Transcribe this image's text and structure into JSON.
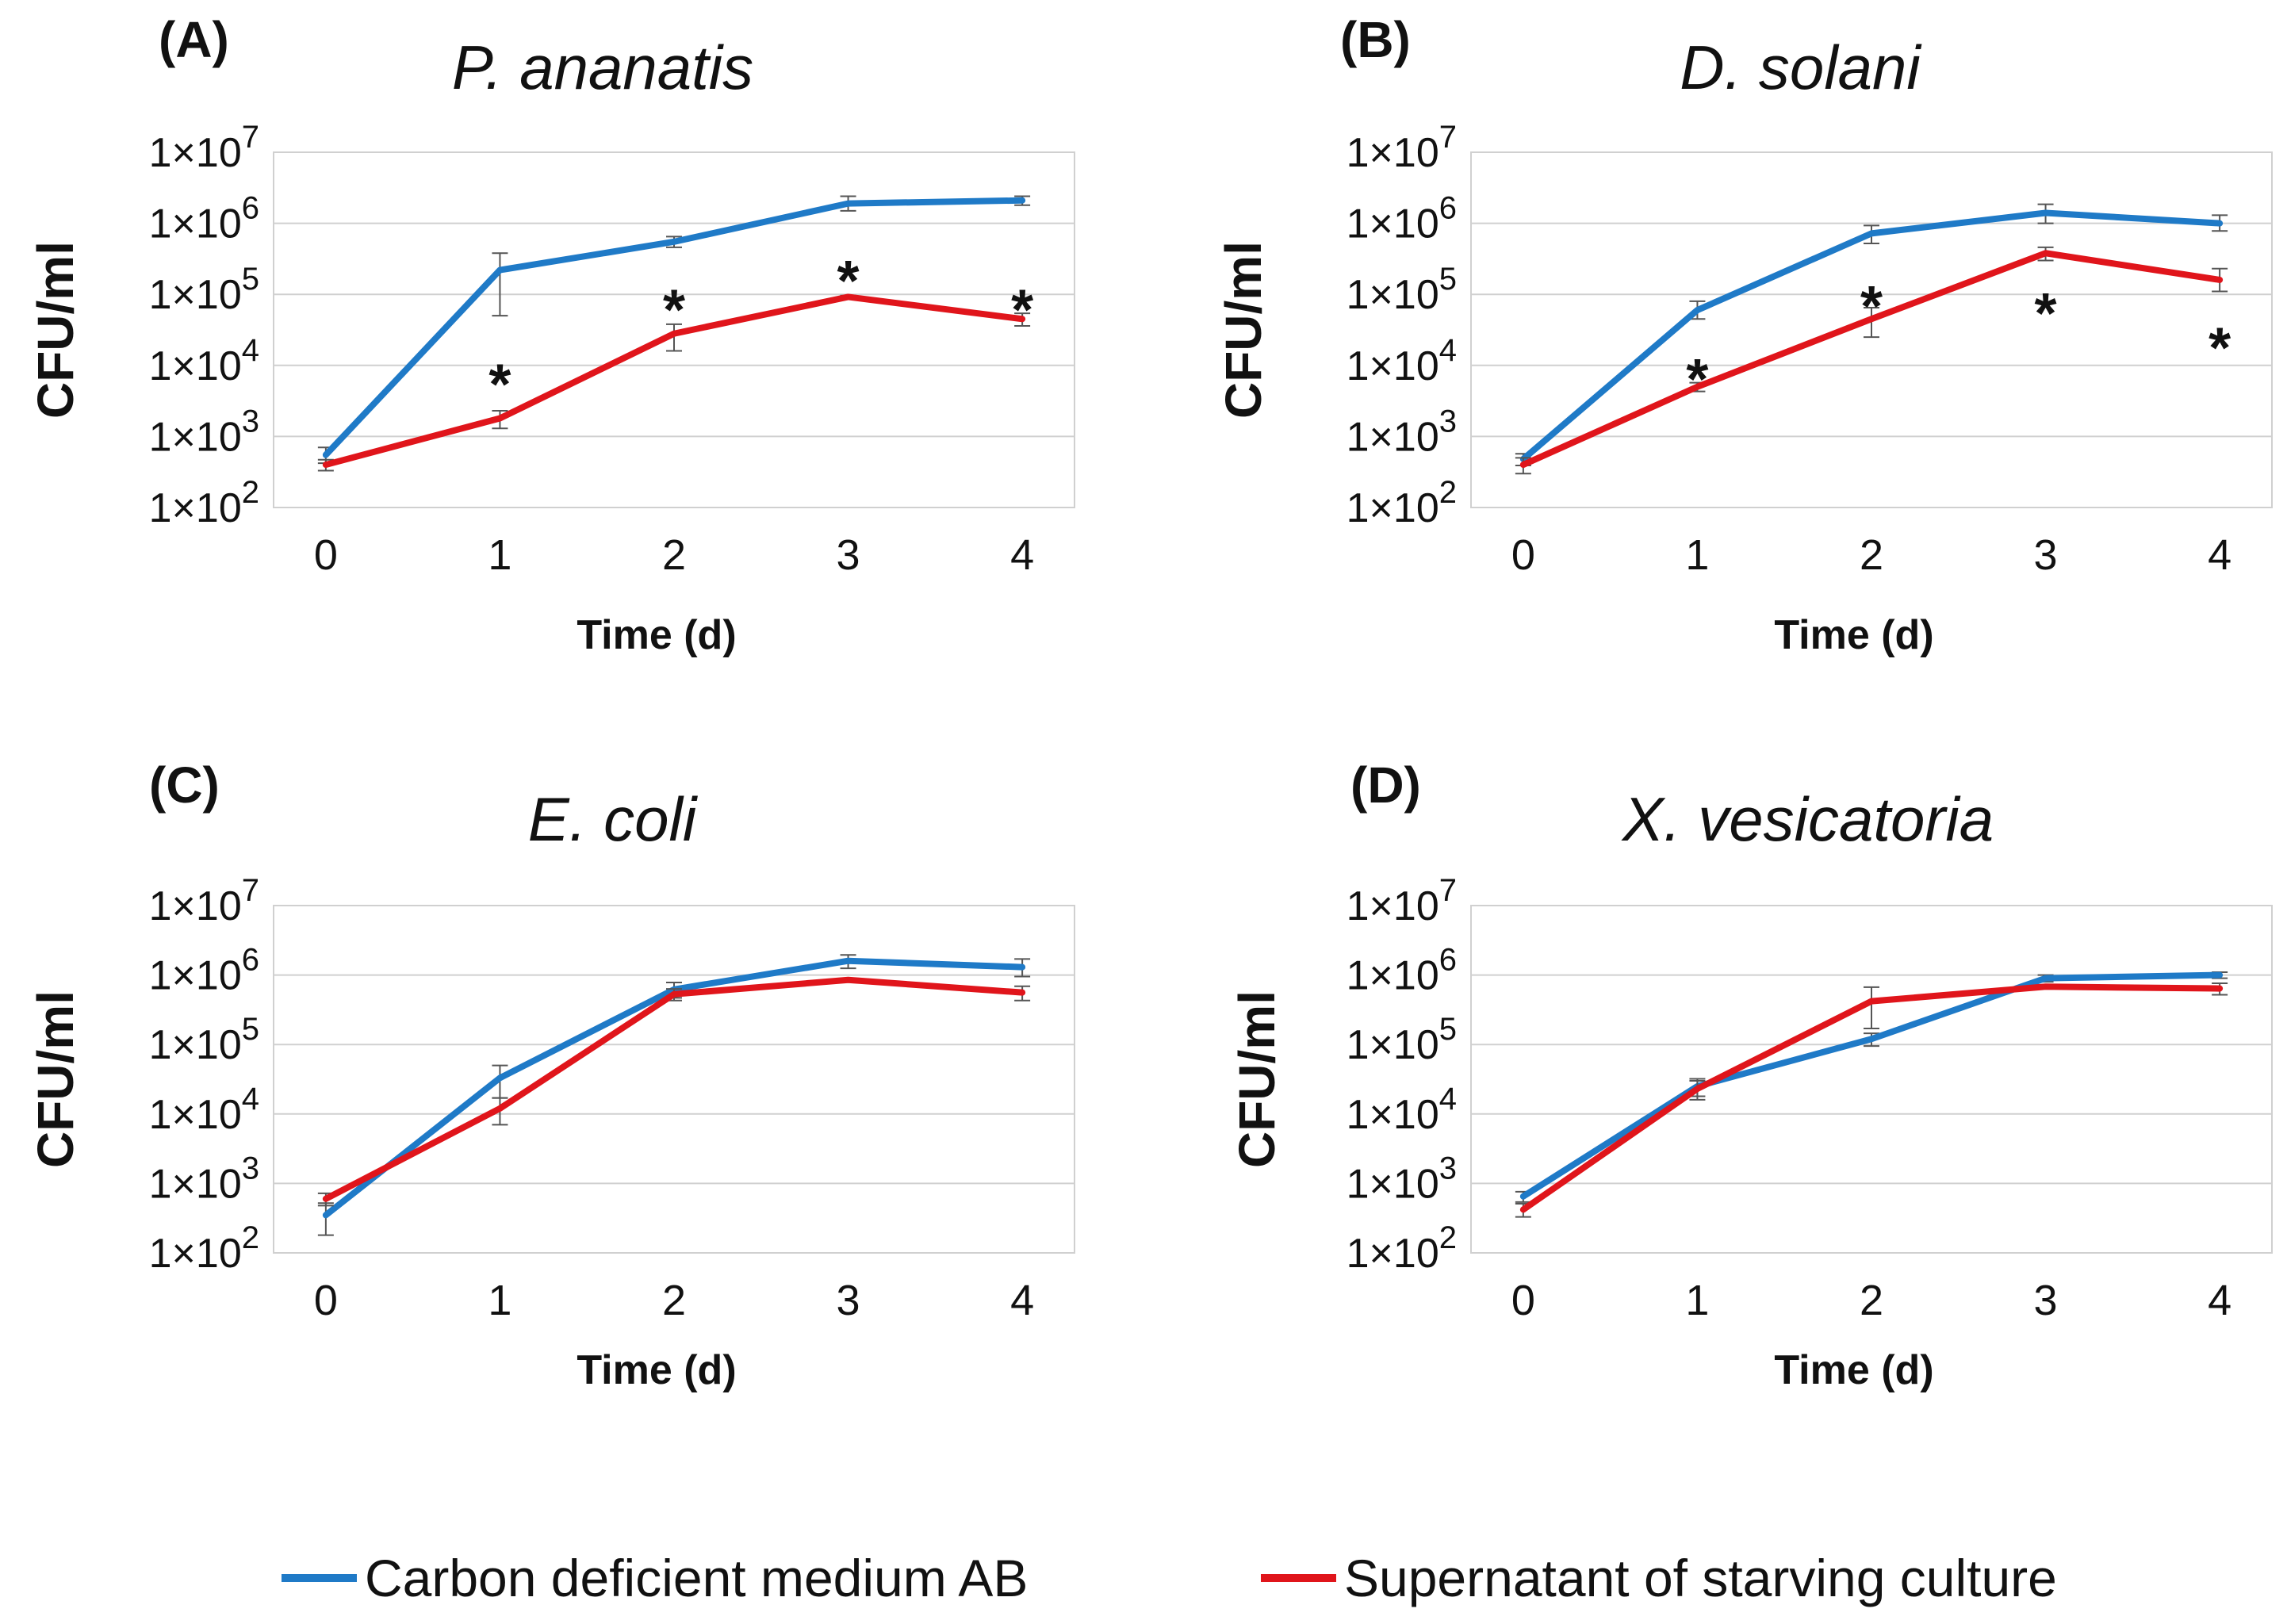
{
  "chart_data": [
    {
      "type": "line",
      "panel": "(A)",
      "title": "P. ananatis",
      "xlabel": "Time (d)",
      "ylabel": "CFU/ml",
      "yscale": "log",
      "ylim": [
        100,
        10000000
      ],
      "ytick_labels": [
        "1×10",
        "1×10",
        "1×10",
        "1×10",
        "1×10",
        "1×10"
      ],
      "ytick_exponents": [
        "2",
        "3",
        "4",
        "5",
        "6",
        "7"
      ],
      "ytick_values": [
        100,
        1000,
        10000,
        100000,
        1000000,
        10000000
      ],
      "x": [
        0,
        1,
        2,
        3,
        4
      ],
      "xtick_labels": [
        "0",
        "1",
        "2",
        "3",
        "4"
      ],
      "grid": true,
      "series": [
        {
          "name": "Carbon deficient medium AB",
          "color": "#1f7ac7",
          "values": [
            550,
            220000,
            550000,
            1900000,
            2100000
          ],
          "err_low": [
            420,
            50000,
            460000,
            1500000,
            1800000
          ],
          "err_high": [
            700,
            380000,
            650000,
            2400000,
            2400000
          ]
        },
        {
          "name": "Supernatant of starving culture",
          "color": "#e0151b",
          "values": [
            400,
            1800,
            28000,
            92000,
            45000
          ],
          "err_low": [
            330,
            1300,
            16000,
            88000,
            36000
          ],
          "err_high": [
            470,
            2300,
            38000,
            96000,
            54000
          ]
        }
      ],
      "annotations": [
        {
          "x": 1,
          "y": 8000,
          "text": "*"
        },
        {
          "x": 2,
          "y": 90000,
          "text": "*"
        },
        {
          "x": 3,
          "y": 230000,
          "text": "*"
        },
        {
          "x": 4,
          "y": 90000,
          "text": "*"
        }
      ]
    },
    {
      "type": "line",
      "panel": "(B)",
      "title": "D. solani",
      "xlabel": "Time (d)",
      "ylabel": "CFU/ml",
      "yscale": "log",
      "ylim": [
        100,
        10000000
      ],
      "ytick_labels": [
        "1×10",
        "1×10",
        "1×10",
        "1×10",
        "1×10",
        "1×10"
      ],
      "ytick_exponents": [
        "2",
        "3",
        "4",
        "5",
        "6",
        "7"
      ],
      "ytick_values": [
        100,
        1000,
        10000,
        100000,
        1000000,
        10000000
      ],
      "x": [
        0,
        1,
        2,
        3,
        4
      ],
      "xtick_labels": [
        "0",
        "1",
        "2",
        "3",
        "4"
      ],
      "grid": true,
      "series": [
        {
          "name": "Carbon deficient medium AB",
          "color": "#1f7ac7",
          "values": [
            480,
            60000,
            720000,
            1400000,
            1000000
          ],
          "err_low": [
            390,
            45000,
            520000,
            1000000,
            780000
          ],
          "err_high": [
            570,
            80000,
            930000,
            1850000,
            1300000
          ]
        },
        {
          "name": "Supernatant of starving culture",
          "color": "#e0151b",
          "values": [
            400,
            5000,
            45000,
            380000,
            160000
          ],
          "err_low": [
            300,
            4300,
            25000,
            300000,
            110000
          ],
          "err_high": [
            500,
            5700,
            65000,
            460000,
            230000
          ]
        }
      ],
      "annotations": [
        {
          "x": 1,
          "y": 9500,
          "text": "*"
        },
        {
          "x": 2,
          "y": 100000,
          "text": "*"
        },
        {
          "x": 3,
          "y": 80000,
          "text": "*"
        },
        {
          "x": 4,
          "y": 26000,
          "text": "*"
        }
      ]
    },
    {
      "type": "line",
      "panel": "(C)",
      "title": "E. coli",
      "xlabel": "Time (d)",
      "ylabel": "CFU/ml",
      "yscale": "log",
      "ylim": [
        100,
        10000000
      ],
      "ytick_labels": [
        "1×10",
        "1×10",
        "1×10",
        "1×10",
        "1×10",
        "1×10"
      ],
      "ytick_exponents": [
        "2",
        "3",
        "4",
        "5",
        "6",
        "7"
      ],
      "ytick_values": [
        100,
        1000,
        10000,
        100000,
        1000000,
        10000000
      ],
      "x": [
        0,
        1,
        2,
        3,
        4
      ],
      "xtick_labels": [
        "0",
        "1",
        "2",
        "3",
        "4"
      ],
      "grid": true,
      "series": [
        {
          "name": "Carbon deficient medium AB",
          "color": "#1f7ac7",
          "values": [
            350,
            33000,
            620000,
            1600000,
            1300000
          ],
          "err_low": [
            180,
            17000,
            470000,
            1250000,
            950000
          ],
          "err_high": [
            520,
            50000,
            780000,
            1950000,
            1700000
          ]
        },
        {
          "name": "Supernatant of starving culture",
          "color": "#e0151b",
          "values": [
            600,
            12000,
            530000,
            850000,
            560000
          ],
          "err_low": [
            480,
            7000,
            430000,
            800000,
            430000
          ],
          "err_high": [
            720,
            17000,
            630000,
            900000,
            690000
          ]
        }
      ],
      "annotations": []
    },
    {
      "type": "line",
      "panel": "(D)",
      "title": "X. vesicatoria",
      "xlabel": "Time (d)",
      "ylabel": "CFU/ml",
      "yscale": "log",
      "ylim": [
        100,
        10000000
      ],
      "ytick_labels": [
        "1×10",
        "1×10",
        "1×10",
        "1×10",
        "1×10",
        "1×10"
      ],
      "ytick_exponents": [
        "2",
        "3",
        "4",
        "5",
        "6",
        "7"
      ],
      "ytick_values": [
        100,
        1000,
        10000,
        100000,
        1000000,
        10000000
      ],
      "x": [
        0,
        1,
        2,
        3,
        4
      ],
      "xtick_labels": [
        "0",
        "1",
        "2",
        "3",
        "4"
      ],
      "grid": true,
      "series": [
        {
          "name": "Carbon deficient medium AB",
          "color": "#1f7ac7",
          "values": [
            650,
            25000,
            120000,
            900000,
            1000000
          ],
          "err_low": [
            540,
            18000,
            95000,
            800000,
            900000
          ],
          "err_high": [
            760,
            32000,
            145000,
            1000000,
            1100000
          ]
        },
        {
          "name": "Supernatant of starving culture",
          "color": "#e0151b",
          "values": [
            420,
            23000,
            420000,
            680000,
            640000
          ],
          "err_low": [
            330,
            16000,
            170000,
            640000,
            520000
          ],
          "err_high": [
            510,
            30000,
            670000,
            720000,
            760000
          ]
        }
      ],
      "annotations": []
    }
  ],
  "legend": {
    "position": "bottom",
    "items": [
      {
        "label": "Carbon deficient medium AB",
        "color": "#1f7ac7"
      },
      {
        "label": "Supernatant of starving culture",
        "color": "#e0151b"
      }
    ]
  }
}
